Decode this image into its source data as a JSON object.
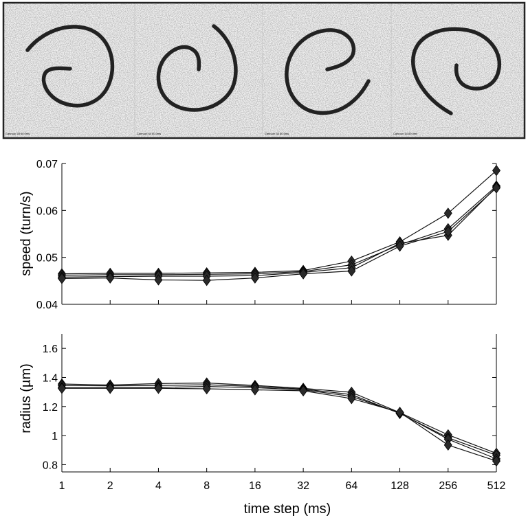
{
  "images": {
    "count": 4,
    "caption_label": "Cahruon 54 60.0ms",
    "caption_note": "tiny unreadable caption text at the lower left of each panel"
  },
  "chart_data": [
    {
      "type": "line",
      "ylabel": "speed (turn/s)",
      "xlabel": "",
      "x_scale": "log2",
      "categories": [
        "1",
        "2",
        "4",
        "8",
        "16",
        "32",
        "64",
        "128",
        "256",
        "512"
      ],
      "ylim": [
        0.04,
        0.07
      ],
      "yticks": [
        "0.04",
        "0.05",
        "0.06",
        "0.07"
      ],
      "marker": "diamond",
      "series": [
        {
          "values": [
            0.0465,
            0.0466,
            0.0466,
            0.0467,
            0.0468,
            0.0472,
            0.0492,
            0.0533,
            0.0594,
            0.0685
          ]
        },
        {
          "values": [
            0.0462,
            0.0463,
            0.0463,
            0.0464,
            0.0465,
            0.047,
            0.0484,
            0.0527,
            0.0561,
            0.0652
          ]
        },
        {
          "values": [
            0.0458,
            0.0459,
            0.046,
            0.046,
            0.0461,
            0.0468,
            0.0478,
            0.053,
            0.0547,
            0.065
          ]
        },
        {
          "values": [
            0.0455,
            0.0456,
            0.0452,
            0.0451,
            0.0456,
            0.0465,
            0.0471,
            0.0524,
            0.0555,
            0.0648
          ]
        }
      ]
    },
    {
      "type": "line",
      "ylabel": "radius (µm)",
      "xlabel": "time step (ms)",
      "x_scale": "log2",
      "categories": [
        "1",
        "2",
        "4",
        "8",
        "16",
        "32",
        "64",
        "128",
        "256",
        "512"
      ],
      "ylim": [
        0.75,
        1.7
      ],
      "yticks": [
        "0.8",
        "1",
        "1.2",
        "1.4",
        "1.6"
      ],
      "marker": "diamond",
      "series": [
        {
          "values": [
            1.355,
            1.348,
            1.358,
            1.362,
            1.345,
            1.325,
            1.298,
            1.158,
            1.005,
            0.878
          ]
        },
        {
          "values": [
            1.345,
            1.342,
            1.345,
            1.35,
            1.338,
            1.32,
            1.282,
            1.152,
            0.985,
            0.865
          ]
        },
        {
          "values": [
            1.33,
            1.33,
            1.332,
            1.338,
            1.33,
            1.315,
            1.27,
            1.155,
            0.975,
            0.84
          ]
        },
        {
          "values": [
            1.325,
            1.325,
            1.325,
            1.322,
            1.315,
            1.308,
            1.255,
            1.16,
            0.935,
            0.825
          ]
        }
      ]
    }
  ]
}
